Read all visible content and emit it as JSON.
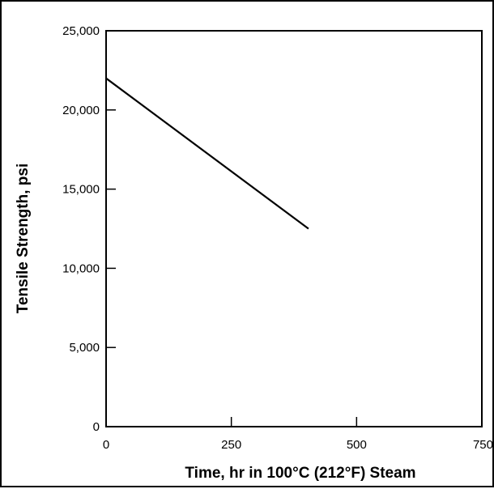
{
  "chart_data": {
    "type": "line",
    "title": "",
    "xlabel": "Time, hr in 100°C (212°F) Steam",
    "ylabel": "Tensile Strength, psi",
    "xlim": [
      0,
      750
    ],
    "ylim": [
      0,
      25000
    ],
    "x_ticks": [
      {
        "value": 0,
        "label": "0"
      },
      {
        "value": 250,
        "label": "250"
      },
      {
        "value": 500,
        "label": "500"
      },
      {
        "value": 750,
        "label": "750"
      }
    ],
    "y_ticks": [
      {
        "value": 0,
        "label": "0"
      },
      {
        "value": 5000,
        "label": "5,000"
      },
      {
        "value": 10000,
        "label": "10,000"
      },
      {
        "value": 15000,
        "label": "15,000"
      },
      {
        "value": 20000,
        "label": "20,000"
      },
      {
        "value": 25000,
        "label": "25,000"
      }
    ],
    "grid": false,
    "series": [
      {
        "x": [
          0,
          404
        ],
        "y": [
          22000,
          12500
        ],
        "color": "#000000"
      }
    ]
  }
}
